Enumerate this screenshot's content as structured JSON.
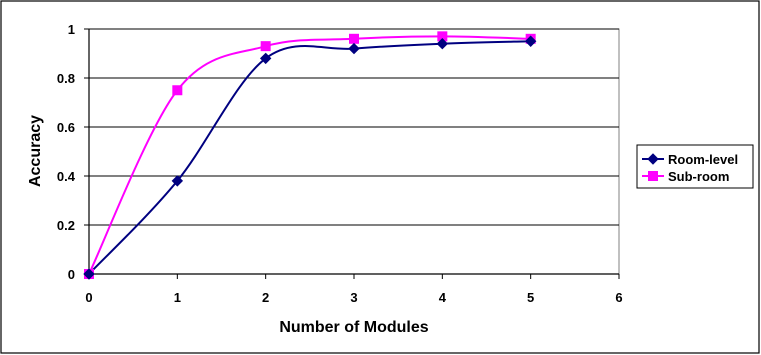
{
  "chart_data": {
    "type": "line",
    "title": "",
    "xlabel": "Number of Modules",
    "ylabel": "Accuracy",
    "xlim": [
      0,
      6
    ],
    "ylim": [
      0,
      1
    ],
    "x_ticks": [
      "0",
      "1",
      "2",
      "3",
      "4",
      "5",
      "6"
    ],
    "y_ticks": [
      "0",
      "0.2",
      "0.4",
      "0.6",
      "0.8",
      "1"
    ],
    "grid": "horizontal",
    "smoothed": true,
    "legend_position": "right",
    "series": [
      {
        "name": "Room-level",
        "color": "#000080",
        "marker": "diamond",
        "x": [
          0,
          1,
          2,
          3,
          4,
          5
        ],
        "y": [
          0,
          0.38,
          0.88,
          0.92,
          0.94,
          0.95
        ]
      },
      {
        "name": "Sub-room",
        "color": "#FF00FF",
        "marker": "square",
        "x": [
          0,
          1,
          2,
          3,
          4,
          5
        ],
        "y": [
          0,
          0.75,
          0.93,
          0.96,
          0.97,
          0.96
        ]
      }
    ]
  }
}
